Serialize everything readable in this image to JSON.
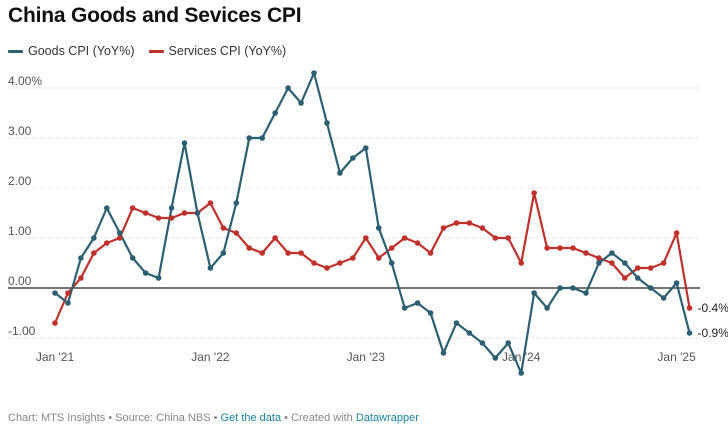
{
  "title": "China Goods and Sevices CPI",
  "colors": {
    "goods": "#2d5f73",
    "services": "#c0312b",
    "grid": "#e2e2e2",
    "zero": "#222222"
  },
  "footer": {
    "chart_label": "Chart: MTS Insights",
    "source_label": "Source: China NBS",
    "get_data": "Get the data",
    "created_label": "Created with",
    "datawrapper": "Datawrapper",
    "sep": " • "
  },
  "chart_data": {
    "type": "line",
    "title": "China Goods and Sevices CPI",
    "y_ticks": [
      4.0,
      3.0,
      2.0,
      1.0,
      0.0,
      -1.0
    ],
    "y_tick_labels": [
      "4.00%",
      "3.00",
      "2.00",
      "1.00",
      "0.00",
      "-1.00"
    ],
    "ylim": [
      -1.75,
      4.3
    ],
    "x_ticks": [
      "Jan '21",
      "Jan '22",
      "Jan '23",
      "Jan '24",
      "Jan '25"
    ],
    "x_tick_index": [
      0,
      12,
      24,
      36,
      48
    ],
    "grid": true,
    "legend_position": "top-left",
    "x": [
      "2021-01",
      "2021-02",
      "2021-03",
      "2021-04",
      "2021-05",
      "2021-06",
      "2021-07",
      "2021-08",
      "2021-09",
      "2021-10",
      "2021-11",
      "2021-12",
      "2022-01",
      "2022-02",
      "2022-03",
      "2022-04",
      "2022-05",
      "2022-06",
      "2022-07",
      "2022-08",
      "2022-09",
      "2022-10",
      "2022-11",
      "2022-12",
      "2023-01",
      "2023-02",
      "2023-03",
      "2023-04",
      "2023-05",
      "2023-06",
      "2023-07",
      "2023-08",
      "2023-09",
      "2023-10",
      "2023-11",
      "2023-12",
      "2024-01",
      "2024-02",
      "2024-03",
      "2024-04",
      "2024-05",
      "2024-06",
      "2024-07",
      "2024-08",
      "2024-09",
      "2024-10",
      "2024-11",
      "2024-12",
      "2025-01",
      "2025-02"
    ],
    "series": [
      {
        "name": "Goods CPI (YoY%)",
        "key": "goods",
        "end_label": "-0.9%",
        "values": [
          -0.1,
          -0.3,
          0.6,
          1.0,
          1.6,
          1.1,
          0.6,
          0.3,
          0.2,
          1.6,
          2.9,
          1.5,
          0.4,
          0.7,
          1.7,
          3.0,
          3.0,
          3.5,
          4.0,
          3.7,
          4.3,
          3.3,
          2.3,
          2.6,
          2.8,
          1.2,
          0.5,
          -0.4,
          -0.3,
          -0.5,
          -1.3,
          -0.7,
          -0.9,
          -1.1,
          -1.4,
          -1.1,
          -1.7,
          -0.1,
          -0.4,
          0.0,
          0.0,
          -0.1,
          0.5,
          0.7,
          0.5,
          0.2,
          0.0,
          -0.2,
          0.1,
          -0.9
        ]
      },
      {
        "name": "Services CPI (YoY%)",
        "key": "services",
        "end_label": "-0.4%",
        "values": [
          -0.7,
          -0.1,
          0.2,
          0.7,
          0.9,
          1.0,
          1.6,
          1.5,
          1.4,
          1.4,
          1.5,
          1.5,
          1.7,
          1.2,
          1.1,
          0.8,
          0.7,
          1.0,
          0.7,
          0.7,
          0.5,
          0.4,
          0.5,
          0.6,
          1.0,
          0.6,
          0.8,
          1.0,
          0.9,
          0.7,
          1.2,
          1.3,
          1.3,
          1.2,
          1.0,
          1.0,
          0.5,
          1.9,
          0.8,
          0.8,
          0.8,
          0.7,
          0.6,
          0.5,
          0.2,
          0.4,
          0.4,
          0.5,
          1.1,
          -0.4
        ]
      }
    ]
  }
}
